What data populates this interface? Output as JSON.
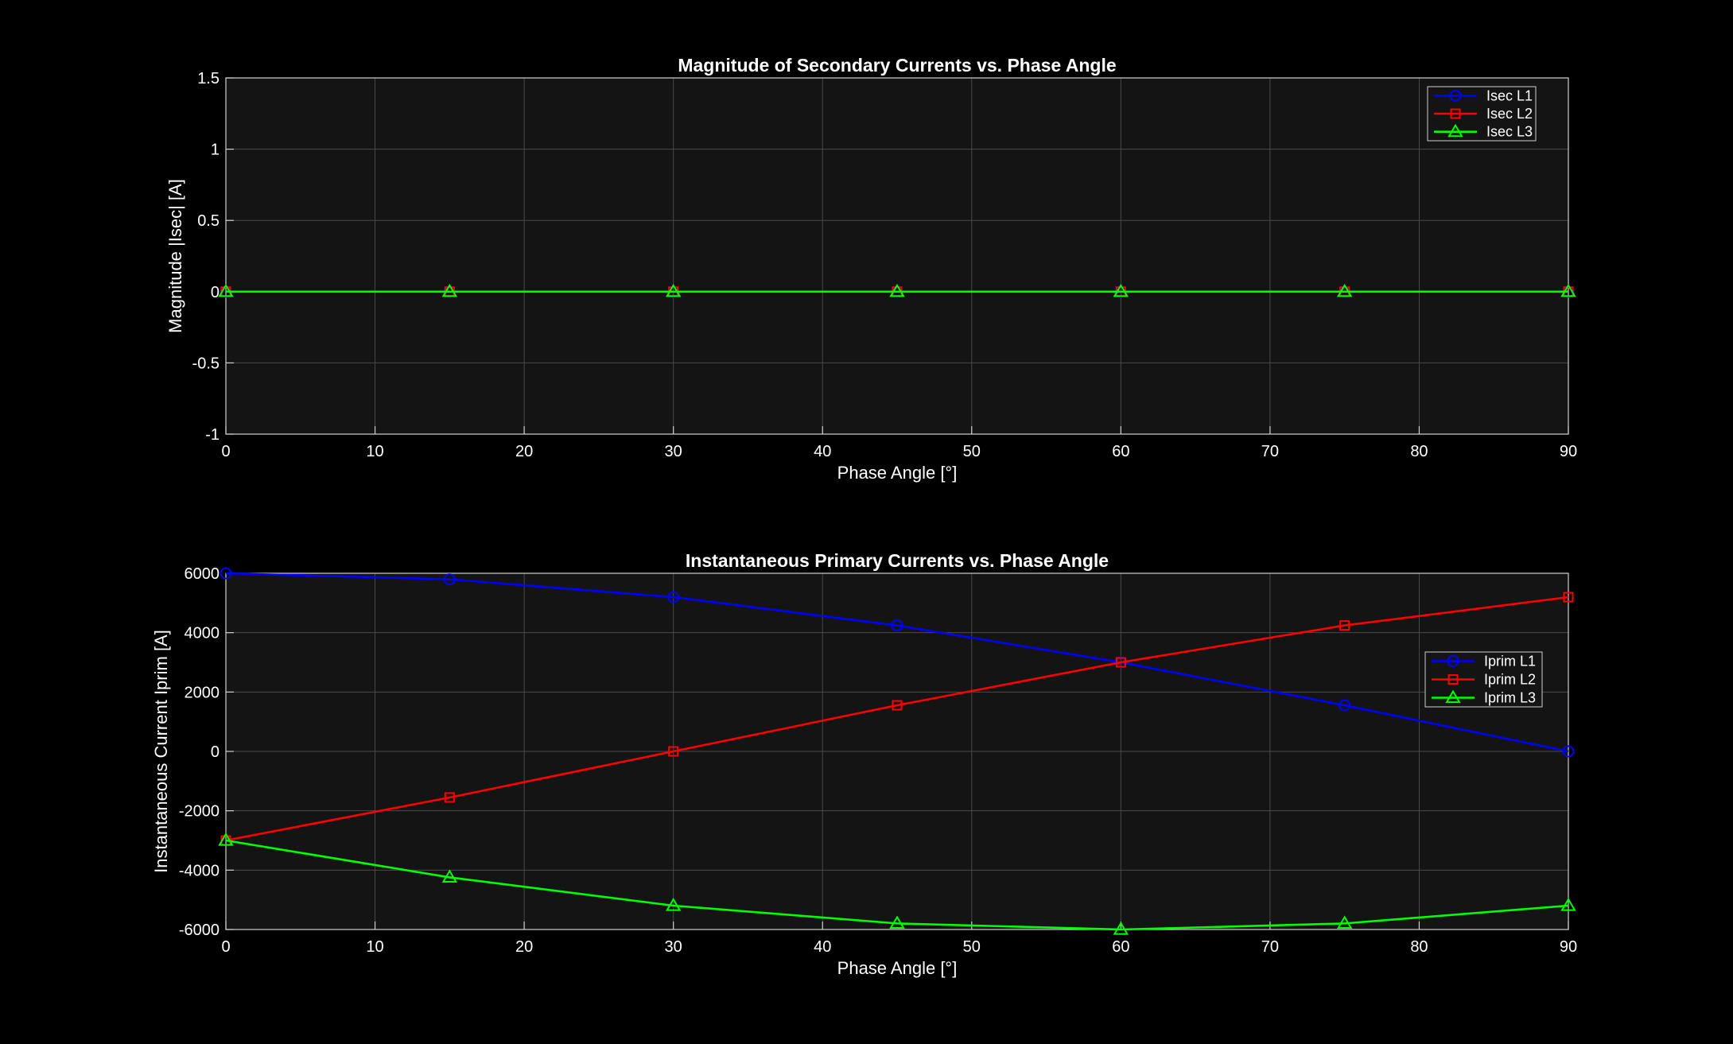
{
  "colors": {
    "background": "#000000",
    "axes_background": "#141414",
    "grid": "#4a4a4a",
    "text": "#ffffff",
    "L1": "#0000ff",
    "L2": "#ff0000",
    "L3": "#00ff00"
  },
  "chart_data": [
    {
      "type": "line",
      "title": "Magnitude of Secondary Currents vs. Phase Angle",
      "xlabel": "Phase Angle [°]",
      "ylabel": "Magnitude |Isec| [A]",
      "xlim": [
        0,
        90
      ],
      "ylim": [
        -1,
        1.5
      ],
      "grid": true,
      "legend_position": "top-right",
      "x_ticks": [
        0,
        10,
        20,
        30,
        40,
        50,
        60,
        70,
        80,
        90
      ],
      "x_tick_labels": [
        "0",
        "10",
        "20",
        "30",
        "40",
        "50",
        "60",
        "70",
        "80",
        "90"
      ],
      "y_ticks": [
        -1,
        -0.5,
        0,
        0.5,
        1,
        1.5
      ],
      "y_tick_labels": [
        "-1",
        "-0.5",
        "0",
        "0.5",
        "1",
        "1.5"
      ],
      "x": [
        0,
        15,
        30,
        45,
        60,
        75,
        90
      ],
      "series": [
        {
          "name": "Isec L1",
          "color_key": "L1",
          "marker": "circle",
          "values": [
            0,
            0,
            0,
            0,
            0,
            0,
            0
          ]
        },
        {
          "name": "Isec L2",
          "color_key": "L2",
          "marker": "square",
          "values": [
            0,
            0,
            0,
            0,
            0,
            0,
            0
          ]
        },
        {
          "name": "Isec L3",
          "color_key": "L3",
          "marker": "triangle",
          "values": [
            0,
            0,
            0,
            0,
            0,
            0,
            0
          ]
        }
      ]
    },
    {
      "type": "line",
      "title": "Instantaneous Primary Currents vs. Phase Angle",
      "xlabel": "Phase Angle [°]",
      "ylabel": "Instantaneous Current Iprim [A]",
      "xlim": [
        0,
        90
      ],
      "ylim": [
        -6000,
        6000
      ],
      "grid": true,
      "legend_position": "center-right",
      "x_ticks": [
        0,
        10,
        20,
        30,
        40,
        50,
        60,
        70,
        80,
        90
      ],
      "x_tick_labels": [
        "0",
        "10",
        "20",
        "30",
        "40",
        "50",
        "60",
        "70",
        "80",
        "90"
      ],
      "y_ticks": [
        -6000,
        -4000,
        -2000,
        0,
        2000,
        4000,
        6000
      ],
      "y_tick_labels": [
        "-6000",
        "-4000",
        "-2000",
        "0",
        "2000",
        "4000",
        "6000"
      ],
      "x": [
        0,
        15,
        30,
        45,
        60,
        75,
        90
      ],
      "series": [
        {
          "name": "Iprim L1",
          "color_key": "L1",
          "marker": "circle",
          "values": [
            6000,
            5796,
            5196,
            4243,
            3000,
            1553,
            0
          ]
        },
        {
          "name": "Iprim L2",
          "color_key": "L2",
          "marker": "square",
          "values": [
            -3000,
            -1553,
            0,
            1553,
            3000,
            4243,
            5196
          ]
        },
        {
          "name": "Iprim L3",
          "color_key": "L3",
          "marker": "triangle",
          "values": [
            -3000,
            -4243,
            -5196,
            -5796,
            -6000,
            -5796,
            -5196
          ]
        }
      ]
    }
  ]
}
